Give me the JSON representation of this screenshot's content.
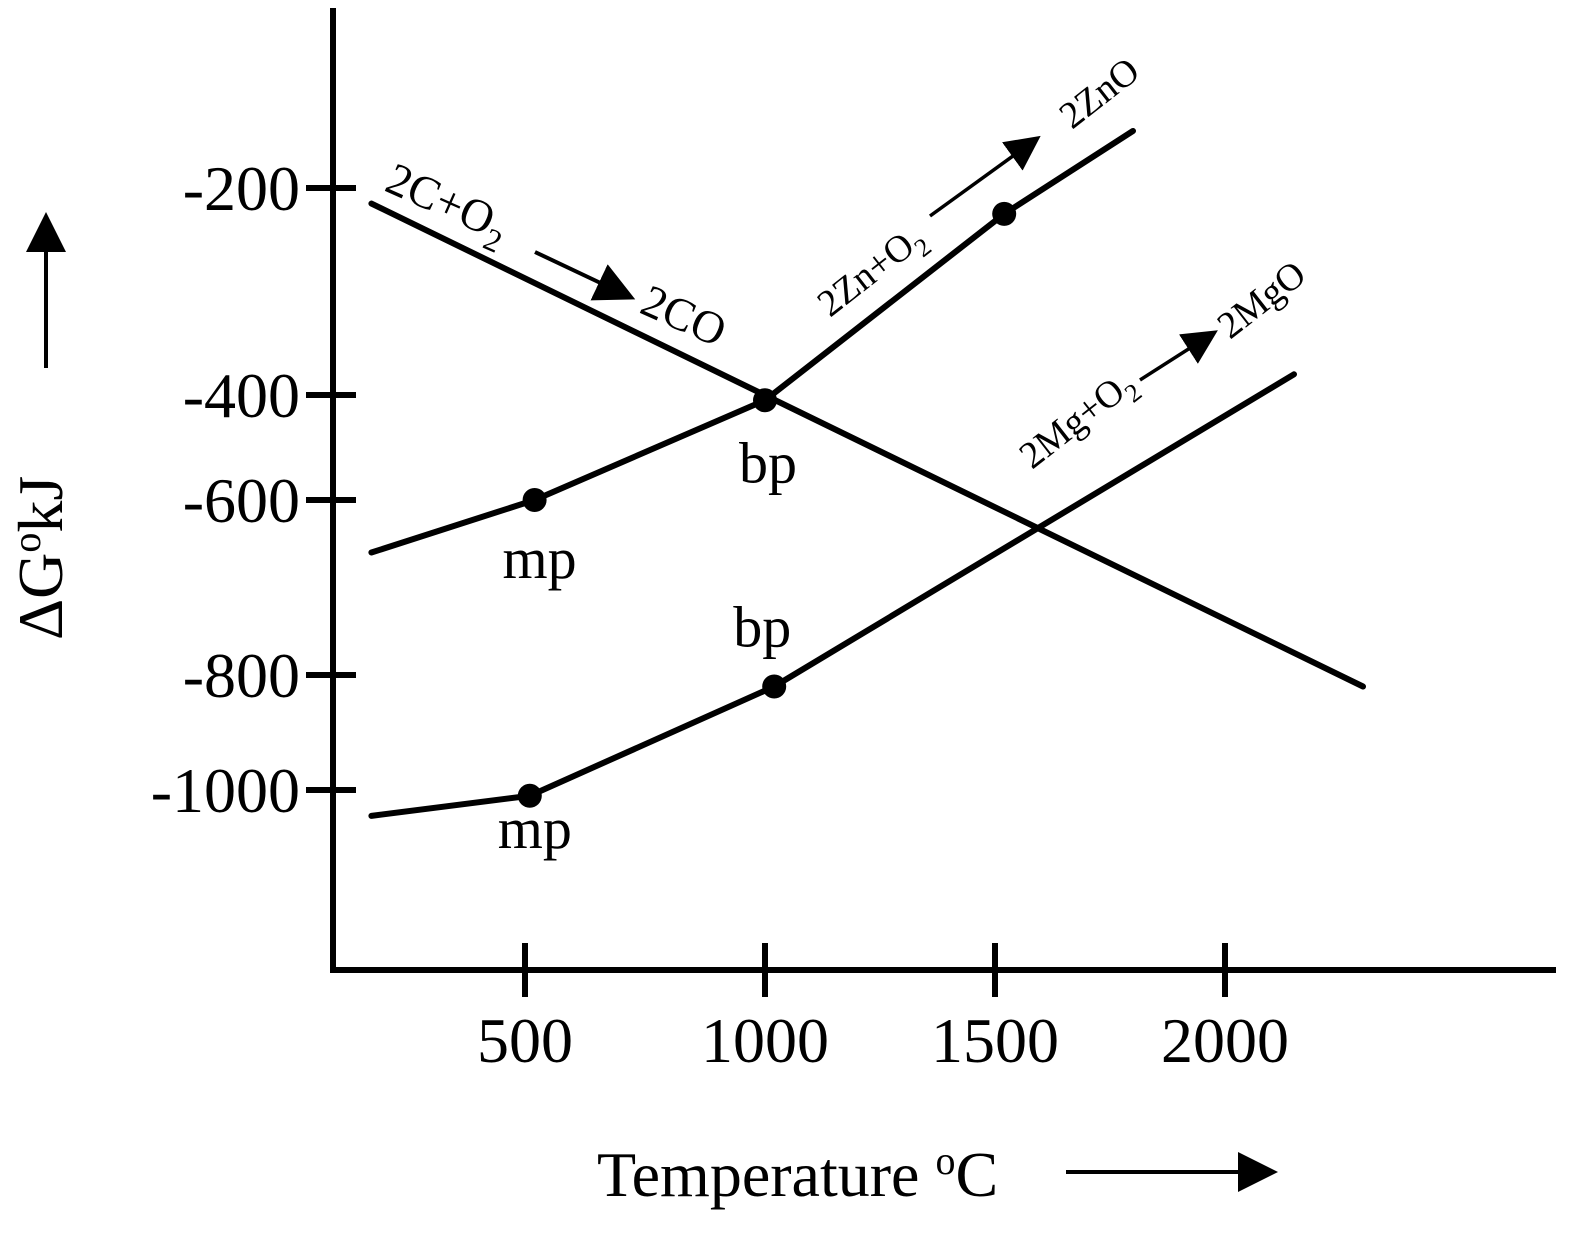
{
  "chart_data": {
    "type": "line",
    "title": "",
    "xlabel": "Temperature",
    "xlabel_unit_sup": "o",
    "xlabel_unit": "C",
    "ylabel_prefix": "ΔG",
    "ylabel_sup": "o",
    "ylabel_unit": "kJ",
    "x_ticks": [
      500,
      1000,
      1500,
      2000
    ],
    "y_ticks": [
      -200,
      -400,
      -600,
      -800,
      -1000
    ],
    "grid": false,
    "series": [
      {
        "name": "2C+O2 → 2CO",
        "label_parts": {
          "lhs": "2C+O",
          "lhs_sub": "2",
          "rhs": "2CO"
        },
        "points": [
          [
            100,
            -215
          ],
          [
            2300,
            -820
          ]
        ],
        "markers": []
      },
      {
        "name": "2Zn+O2 → 2ZnO",
        "label_parts": {
          "lhs": "2Zn+O",
          "lhs_sub": "2",
          "rhs": "2ZnO"
        },
        "points": [
          [
            100,
            -660
          ],
          [
            520,
            -600
          ],
          [
            1000,
            -410
          ],
          [
            1520,
            -225
          ],
          [
            1800,
            -130
          ]
        ],
        "markers": [
          {
            "x": 520,
            "y": -600,
            "label": "mp"
          },
          {
            "x": 1000,
            "y": -410,
            "label": "bp"
          },
          {
            "x": 1520,
            "y": -225,
            "label": ""
          }
        ]
      },
      {
        "name": "2Mg+O2 → 2MgO",
        "label_parts": {
          "lhs": "2Mg+O",
          "lhs_sub": "2",
          "rhs": "2MgO"
        },
        "points": [
          [
            100,
            -1045
          ],
          [
            510,
            -1010
          ],
          [
            1020,
            -820
          ],
          [
            2150,
            -380
          ]
        ],
        "markers": [
          {
            "x": 510,
            "y": -1010,
            "label": "mp"
          },
          {
            "x": 1020,
            "y": -820,
            "label": "bp"
          }
        ]
      }
    ]
  }
}
